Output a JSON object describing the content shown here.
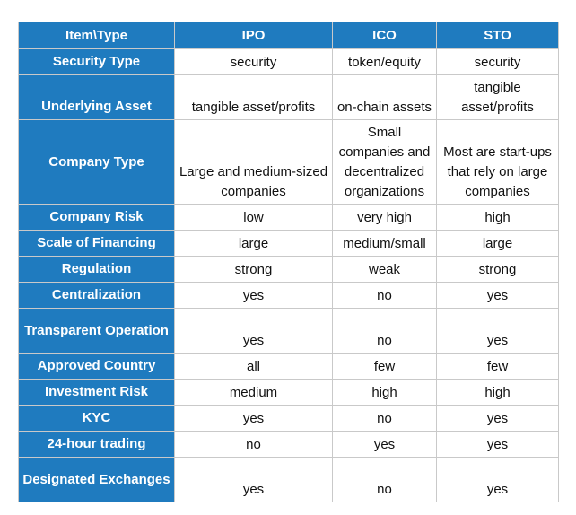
{
  "table": {
    "headers": [
      "Item\\Type",
      "IPO",
      "ICO",
      "STO"
    ],
    "rows": [
      {
        "label": "Security Type",
        "ipo": "security",
        "ico": "token/equity",
        "sto": "security"
      },
      {
        "label": "Underlying Asset",
        "ipo": "tangible asset/profits",
        "ico": "on-chain assets",
        "sto": "tangible asset/profits"
      },
      {
        "label": "Company Type",
        "ipo": "Large and medium-sized companies",
        "ico": "Small companies and decentralized organizations",
        "sto": "Most are start-ups that rely on large companies"
      },
      {
        "label": "Company Risk",
        "ipo": "low",
        "ico": "very high",
        "sto": "high"
      },
      {
        "label": "Scale of Financing",
        "ipo": "large",
        "ico": "medium/small",
        "sto": "large"
      },
      {
        "label": "Regulation",
        "ipo": "strong",
        "ico": "weak",
        "sto": "strong"
      },
      {
        "label": "Centralization",
        "ipo": "yes",
        "ico": "no",
        "sto": "yes"
      },
      {
        "label": "Transparent Operation",
        "ipo": "yes",
        "ico": "no",
        "sto": "yes"
      },
      {
        "label": "Approved Country",
        "ipo": "all",
        "ico": "few",
        "sto": "few"
      },
      {
        "label": "Investment Risk",
        "ipo": "medium",
        "ico": "high",
        "sto": "high"
      },
      {
        "label": "KYC",
        "ipo": "yes",
        "ico": "no",
        "sto": "yes"
      },
      {
        "label": "24-hour trading",
        "ipo": "no",
        "ico": "yes",
        "sto": "yes"
      },
      {
        "label": "Designated Exchanges",
        "ipo": "yes",
        "ico": "no",
        "sto": "yes"
      }
    ]
  }
}
